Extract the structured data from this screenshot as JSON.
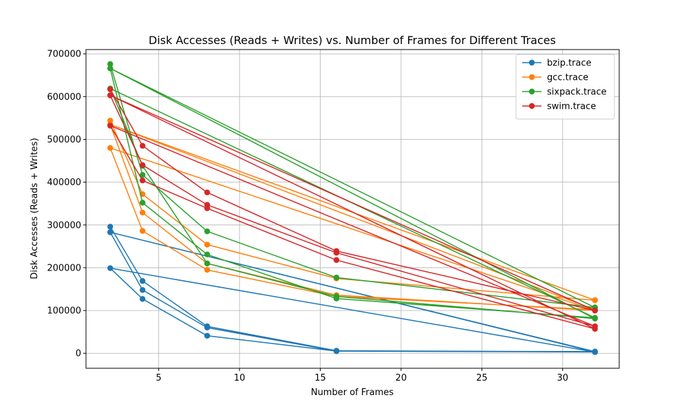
{
  "chart_data": {
    "type": "line",
    "title": "Disk Accesses (Reads + Writes) vs. Number of Frames for Different Traces",
    "xlabel": "Number of Frames",
    "ylabel": "Disk Accesses (Reads + Writes)",
    "xlim": [
      0.5,
      33.5
    ],
    "ylim": [
      -35000,
      710000
    ],
    "xticks": [
      5,
      10,
      15,
      20,
      25,
      30
    ],
    "yticks": [
      0,
      100000,
      200000,
      300000,
      400000,
      500000,
      600000,
      700000
    ],
    "grid": true,
    "legend_position": "top-right",
    "series": [
      {
        "name": "bzip.trace",
        "color": "#1f77b4",
        "x": [
          2,
          4,
          8,
          16,
          32,
          2,
          4,
          8,
          16,
          32,
          2,
          4,
          8,
          16,
          32,
          2,
          32
        ],
        "y": [
          296000,
          169000,
          63000,
          6000,
          3500,
          283000,
          148000,
          60000,
          5000,
          3000,
          199000,
          127000,
          41000,
          5000,
          4000,
          283000,
          3000
        ]
      },
      {
        "name": "gcc.trace",
        "color": "#ff7f0e",
        "x": [
          2,
          4,
          8,
          16,
          32,
          2,
          4,
          8,
          16,
          32,
          2,
          4,
          8,
          16,
          32,
          2,
          32
        ],
        "y": [
          544000,
          372000,
          254000,
          175000,
          124000,
          535000,
          329000,
          210000,
          136000,
          100000,
          480000,
          286000,
          195000,
          133000,
          102000,
          535000,
          124000
        ]
      },
      {
        "name": "sixpack.trace",
        "color": "#2ca02c",
        "x": [
          2,
          4,
          8,
          16,
          32,
          2,
          4,
          8,
          16,
          32,
          2,
          4,
          8,
          16,
          32,
          2,
          32
        ],
        "y": [
          676000,
          417000,
          285000,
          177000,
          107000,
          666000,
          352000,
          231000,
          128000,
          83000,
          619000,
          438000,
          210000,
          133000,
          81000,
          666000,
          107000
        ]
      },
      {
        "name": "swim.trace",
        "color": "#d62728",
        "x": [
          2,
          4,
          8,
          16,
          32,
          2,
          4,
          8,
          16,
          32,
          2,
          4,
          8,
          16,
          32,
          2,
          32
        ],
        "y": [
          617000,
          485000,
          376000,
          239000,
          100000,
          603000,
          440000,
          347000,
          235000,
          63000,
          532000,
          404000,
          339000,
          218000,
          57000,
          603000,
          100000
        ]
      }
    ]
  }
}
